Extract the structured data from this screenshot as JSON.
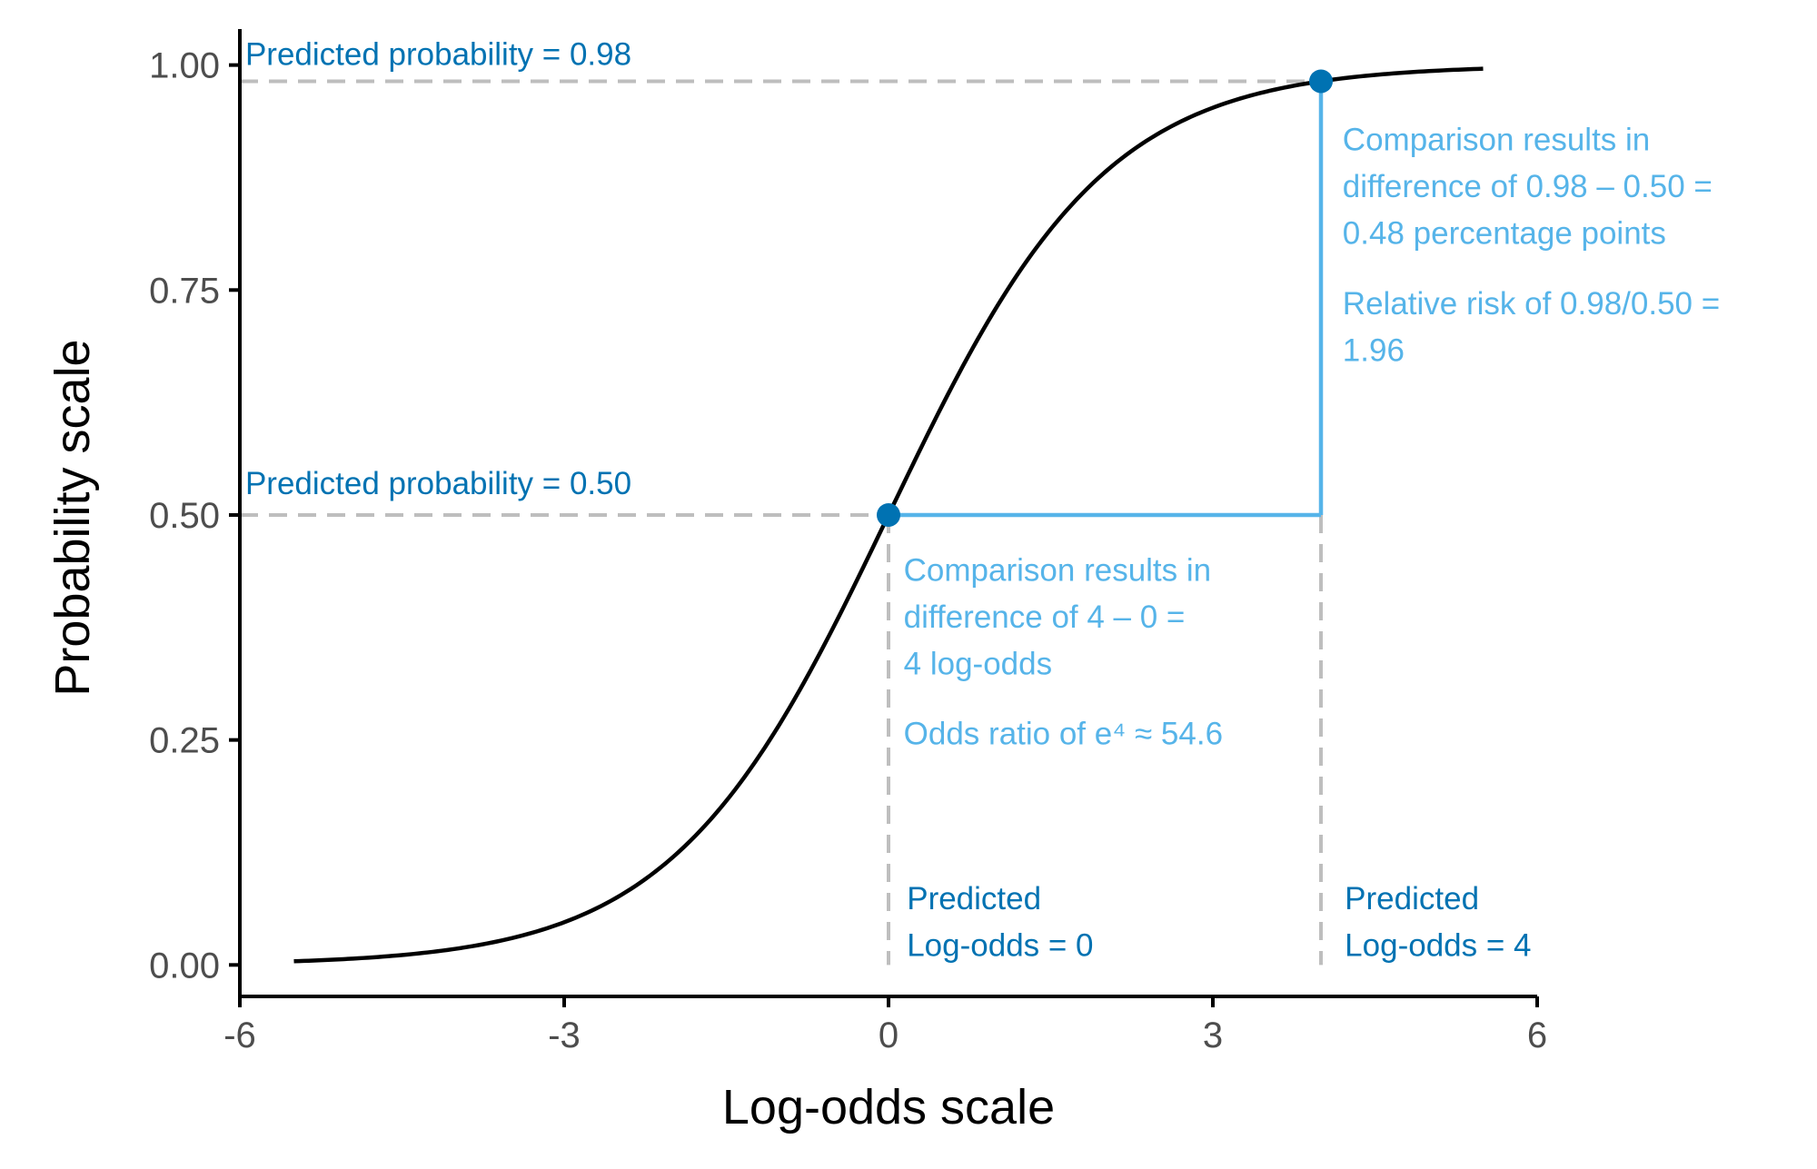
{
  "chart_data": {
    "type": "line",
    "title": "",
    "xlabel": "Log-odds scale",
    "ylabel": "Probability scale",
    "xlim": [
      -6,
      6
    ],
    "ylim": [
      -0.035,
      1.04
    ],
    "x_ticks": [
      -6,
      -3,
      0,
      3,
      6
    ],
    "x_tick_labels": [
      "-6",
      "-3",
      "0",
      "3",
      "6"
    ],
    "y_ticks": [
      0,
      0.25,
      0.5,
      0.75,
      1.0
    ],
    "y_tick_labels": [
      "0.00",
      "0.25",
      "0.50",
      "0.75",
      "1.00"
    ],
    "grid": false,
    "curve": {
      "function": "logistic",
      "x_range": [
        -5.5,
        5.5
      ],
      "color": "#000000"
    },
    "points": [
      {
        "x": 0,
        "y": 0.5,
        "color": "#0072B2"
      },
      {
        "x": 4,
        "y": 0.982,
        "color": "#0072B2"
      }
    ],
    "reference_lines": [
      {
        "from": [
          -6,
          0.982
        ],
        "to": [
          4,
          0.982
        ],
        "style": "dashed",
        "color": "#BEBEBE"
      },
      {
        "from": [
          -6,
          0.5
        ],
        "to": [
          0,
          0.5
        ],
        "style": "dashed",
        "color": "#BEBEBE"
      },
      {
        "from": [
          0,
          0.5
        ],
        "to": [
          0,
          0
        ],
        "style": "dashed",
        "color": "#BEBEBE"
      },
      {
        "from": [
          4,
          0.5
        ],
        "to": [
          4,
          0
        ],
        "style": "dashed",
        "color": "#BEBEBE"
      },
      {
        "from": [
          0,
          0.5
        ],
        "to": [
          4,
          0.5
        ],
        "style": "solid",
        "color": "#56B4E9"
      },
      {
        "from": [
          4,
          0.5
        ],
        "to": [
          4,
          0.982
        ],
        "style": "solid",
        "color": "#56B4E9"
      }
    ],
    "annotations": [
      {
        "lines": [
          "Predicted probability = 0.98"
        ],
        "x": -5.95,
        "y": 1.0,
        "color": "#0072B2"
      },
      {
        "lines": [
          "Predicted probability = 0.50"
        ],
        "x": -5.95,
        "y": 0.523,
        "color": "#0072B2"
      },
      {
        "lines": [
          "Comparison results in",
          "difference of 0.98 – 0.50 =",
          "0.48 percentage points",
          "",
          "Relative risk of 0.98/0.50 =",
          "1.96"
        ],
        "x": 4.2,
        "y": 0.905,
        "color": "#56B4E9"
      },
      {
        "lines": [
          "Comparison results in",
          "difference of 4 – 0 =",
          "4 log-odds",
          "",
          "Odds ratio of e⁴ ≈ 54.6"
        ],
        "x": 0.14,
        "y": 0.427,
        "color": "#56B4E9"
      },
      {
        "lines": [
          "Predicted",
          "Log-odds = 0"
        ],
        "x": 0.17,
        "y": 0.062,
        "color": "#0072B2"
      },
      {
        "lines": [
          "Predicted",
          "Log-odds = 4"
        ],
        "x": 4.22,
        "y": 0.062,
        "color": "#0072B2"
      }
    ]
  }
}
